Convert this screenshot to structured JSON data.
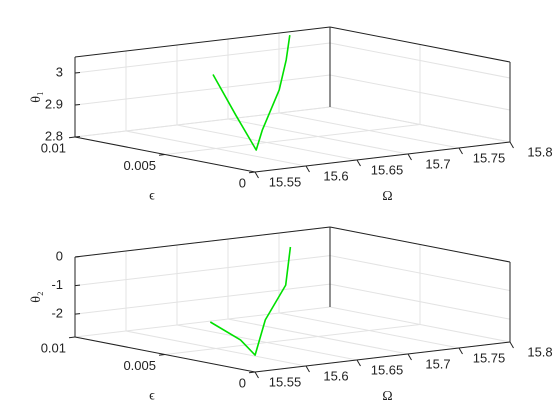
{
  "chart_data": [
    {
      "type": "line3d",
      "xlabel": "Ω",
      "ylabel": "ϵ",
      "zlabel": "θ₁",
      "xlim": [
        15.55,
        15.8
      ],
      "xticks": [
        15.55,
        15.6,
        15.65,
        15.7,
        15.75,
        15.8
      ],
      "ylim": [
        0,
        0.01
      ],
      "yticks": [
        0,
        0.005,
        0.01
      ],
      "zlim": [
        2.8,
        3.05
      ],
      "zticks": [
        2.8,
        2.9,
        3
      ],
      "grid": true,
      "color": "#00e000",
      "x": [
        15.68,
        15.646,
        15.62,
        15.656,
        15.692,
        15.72,
        15.75
      ],
      "y": [
        0.0097,
        0.0065,
        0.0039,
        0.0056,
        0.0067,
        0.0079,
        0.0094
      ],
      "z": [
        2.95,
        2.87,
        2.8,
        2.83,
        2.93,
        3.0,
        3.05
      ]
    },
    {
      "type": "line3d",
      "xlabel": "Ω",
      "ylabel": "ϵ",
      "zlabel": "θ₂",
      "xlim": [
        15.55,
        15.8
      ],
      "xticks": [
        15.55,
        15.6,
        15.65,
        15.7,
        15.75,
        15.8
      ],
      "ylim": [
        0,
        0.01
      ],
      "yticks": [
        0,
        0.005,
        0.01
      ],
      "zlim": [
        -2.8,
        0
      ],
      "zticks": [
        -2,
        -1,
        0
      ],
      "grid": true,
      "color": "#00e000",
      "x": [
        15.635,
        15.624,
        15.603,
        15.666,
        15.716,
        15.74
      ],
      "y": [
        0.0073,
        0.005,
        0.003,
        0.006,
        0.0077,
        0.0088
      ],
      "z": [
        -2.3,
        -2.6,
        -2.8,
        -2.2,
        -1.4,
        -0.3
      ]
    }
  ]
}
